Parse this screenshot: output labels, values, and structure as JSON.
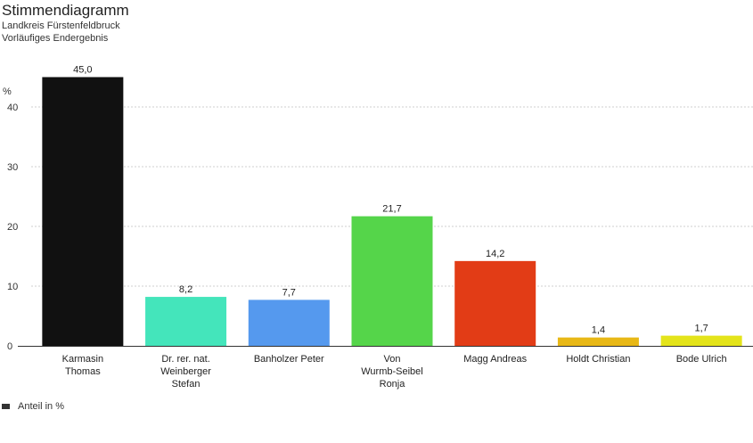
{
  "header": {
    "title": "Stimmendiagramm",
    "subtitle": "Landkreis Fürstenfeldbruck",
    "subtitle2": "Vorläufiges Endergebnis"
  },
  "chart_data": {
    "type": "bar",
    "ylabel": "%",
    "ylim": [
      0,
      45
    ],
    "yticks": [
      0,
      10,
      20,
      30,
      40
    ],
    "grid": true,
    "legend": "bottom-left",
    "categories": [
      [
        "Karmasin",
        "Thomas"
      ],
      [
        "Dr. rer. nat.",
        "Weinberger",
        "Stefan"
      ],
      [
        "Banholzer Peter"
      ],
      [
        "Von",
        "Wurmb-Seibel",
        "Ronja"
      ],
      [
        "Magg Andreas"
      ],
      [
        "Holdt Christian"
      ],
      [
        "Bode Ulrich"
      ]
    ],
    "series": [
      {
        "name": "Anteil in %",
        "values": [
          45.0,
          8.2,
          7.7,
          21.7,
          14.2,
          1.4,
          1.7
        ],
        "labels": [
          "45,0",
          "8,2",
          "7,7",
          "21,7",
          "14,2",
          "1,4",
          "1,7"
        ],
        "colors": [
          "#111111",
          "#44e5bb",
          "#5599ee",
          "#55d54a",
          "#e23c16",
          "#e8b816",
          "#e4e41a"
        ]
      }
    ]
  }
}
